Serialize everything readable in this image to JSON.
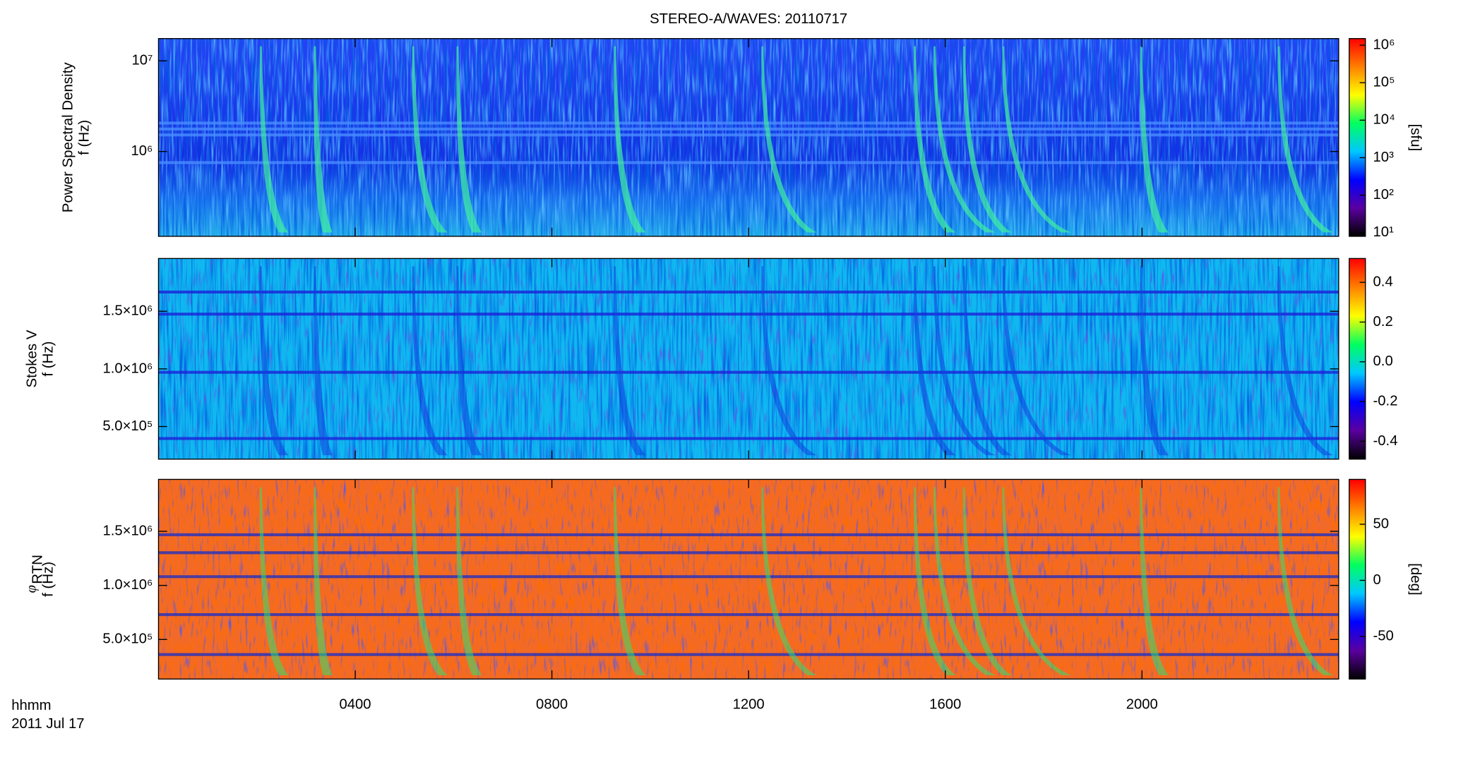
{
  "chart_data": [
    {
      "type": "spectrogram",
      "title": "STEREO-A/WAVES: 20110717",
      "quantity": "Power Spectral Density",
      "ylabel": "f (Hz)",
      "xlim": [
        0,
        24
      ],
      "xticks": [
        4,
        8,
        12,
        16,
        20
      ],
      "ylim": [
        116000,
        17600000
      ],
      "ylog": true,
      "yticks": [
        {
          "value": 1000000,
          "label": "10⁶"
        },
        {
          "value": 10000000,
          "label": "10⁷"
        }
      ],
      "zlim": [
        8,
        1500000
      ],
      "zlog": true,
      "zticks": [
        {
          "value": 10,
          "label": "10¹"
        },
        {
          "value": 100,
          "label": "10²"
        },
        {
          "value": 1000,
          "label": "10³"
        },
        {
          "value": 10000,
          "label": "10⁴"
        },
        {
          "value": 100000,
          "label": "10⁵"
        },
        {
          "value": 1000000,
          "label": "10⁶"
        }
      ],
      "colorbar_label": "[sfu]",
      "background": "#1f3cf0",
      "colormap": [
        "#000000",
        "#5a00a0",
        "#0000ff",
        "#00c8ff",
        "#00ff60",
        "#ffff00",
        "#ff8000",
        "#ff0000"
      ]
    },
    {
      "type": "spectrogram",
      "quantity": "Stokes V",
      "ylabel": "f (Hz)",
      "xlim": [
        0,
        24
      ],
      "xticks": [
        4,
        8,
        12,
        16,
        20
      ],
      "ylim": [
        217000,
        1958000
      ],
      "ylog": false,
      "yticks": [
        {
          "value": 500000,
          "label": "5.0×10⁵"
        },
        {
          "value": 1000000,
          "label": "1.0×10⁶"
        },
        {
          "value": 1500000,
          "label": "1.5×10⁶"
        }
      ],
      "zlim": [
        -0.49,
        0.52
      ],
      "zlog": false,
      "zticks": [
        -0.4,
        -0.2,
        {
          "value": 0,
          "label": "0.0"
        },
        0.2,
        0.4
      ],
      "background": "#10b8f0",
      "colormap": [
        "#000000",
        "#5a00a0",
        "#0000ff",
        "#00c8ff",
        "#00ff60",
        "#ffff00",
        "#ff8000",
        "#ff0000"
      ]
    },
    {
      "type": "spectrogram",
      "quantity": "φ",
      "quantity_subscript": "RTN",
      "ylabel": "f (Hz)",
      "xlim": [
        0,
        24
      ],
      "xticks": [
        {
          "value": 4,
          "label": "0400"
        },
        {
          "value": 8,
          "label": "0800"
        },
        {
          "value": 12,
          "label": "1200"
        },
        {
          "value": 16,
          "label": "1600"
        },
        {
          "value": 20,
          "label": "2000"
        }
      ],
      "xlabel": "hhmm",
      "date": "2011 Jul 17",
      "ylim": [
        134000,
        1980000
      ],
      "ylog": false,
      "yticks": [
        {
          "value": 500000,
          "label": "5.0×10⁵"
        },
        {
          "value": 1000000,
          "label": "1.0×10⁶"
        },
        {
          "value": 1500000,
          "label": "1.5×10⁶"
        }
      ],
      "zlim": [
        -88,
        90
      ],
      "zlog": false,
      "zticks": [
        -50,
        0,
        50
      ],
      "colorbar_label": "[deg]",
      "background": "#f26a2a",
      "colormap": [
        "#000000",
        "#5a00a0",
        "#0000ff",
        "#00c8ff",
        "#00ff60",
        "#ffff00",
        "#ff8000",
        "#ff0000"
      ]
    }
  ]
}
